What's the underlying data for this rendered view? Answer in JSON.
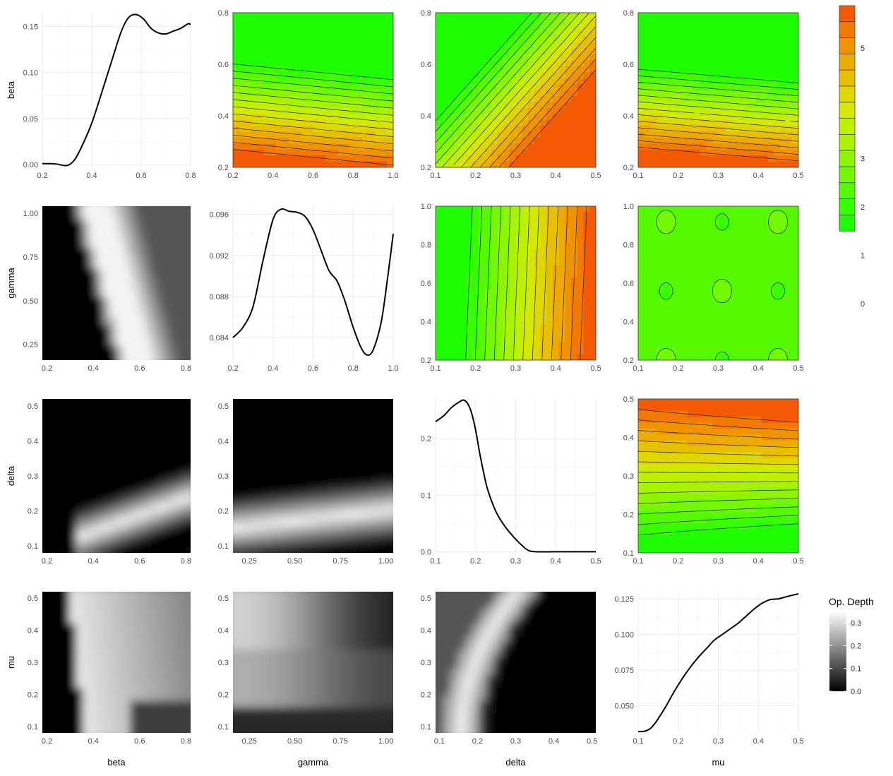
{
  "variables": [
    "beta",
    "gamma",
    "delta",
    "mu"
  ],
  "ranges": {
    "beta": [
      0.2,
      0.8
    ],
    "gamma": [
      0.2,
      1.0
    ],
    "delta": [
      0.1,
      0.5
    ],
    "mu": [
      0.1,
      0.5
    ]
  },
  "axis_titles": {
    "x": [
      "beta",
      "gamma",
      "delta",
      "mu"
    ],
    "y": [
      "beta",
      "gamma",
      "delta",
      "mu"
    ]
  },
  "legends": {
    "contour": {
      "title": "",
      "ticks": [
        "5",
        "3",
        "2",
        "1",
        "0"
      ],
      "colors": [
        "#f35a03",
        "#f27a03",
        "#ef9400",
        "#eeaa00",
        "#e8c000",
        "#e0d600",
        "#d4e800",
        "#c0f000",
        "#a8f400",
        "#8cf600",
        "#72f800",
        "#56fa00",
        "#38fc00",
        "#1efe00"
      ],
      "colorbar": "stepped"
    },
    "depth": {
      "title": "Op. Depth",
      "ticks": [
        "0.3",
        "0.2",
        "0.1",
        "0.0"
      ],
      "range": [
        0.0,
        0.35
      ],
      "colors": [
        "#000000",
        "#ffffff"
      ]
    }
  },
  "chart_data": [
    {
      "type": "line",
      "row": 1,
      "col": 1,
      "variable": "beta",
      "xlabel": "beta",
      "x": [
        0.2,
        0.23,
        0.26,
        0.3,
        0.33,
        0.36,
        0.4,
        0.44,
        0.48,
        0.52,
        0.55,
        0.58,
        0.61,
        0.64,
        0.67,
        0.7,
        0.73,
        0.76,
        0.79,
        0.8
      ],
      "y": [
        0.001,
        0.001,
        0.0005,
        -0.001,
        0.005,
        0.02,
        0.045,
        0.078,
        0.112,
        0.145,
        0.16,
        0.163,
        0.158,
        0.148,
        0.143,
        0.142,
        0.145,
        0.148,
        0.153,
        0.152
      ],
      "xticks": [
        "0.2",
        "0.4",
        "0.6",
        "0.8"
      ],
      "yticks": [
        "0.00",
        "0.05",
        "0.10",
        "0.15"
      ],
      "xlim": [
        0.2,
        0.8
      ],
      "ylim": [
        -0.003,
        0.165
      ]
    },
    {
      "type": "line",
      "row": 2,
      "col": 2,
      "variable": "gamma",
      "xlabel": "gamma",
      "x": [
        0.2,
        0.25,
        0.3,
        0.35,
        0.4,
        0.44,
        0.48,
        0.52,
        0.56,
        0.6,
        0.64,
        0.68,
        0.72,
        0.76,
        0.8,
        0.84,
        0.87,
        0.9,
        0.94,
        0.97,
        1.0
      ],
      "y": [
        0.084,
        0.085,
        0.087,
        0.0915,
        0.0955,
        0.0965,
        0.0963,
        0.0962,
        0.0958,
        0.0945,
        0.0925,
        0.0905,
        0.0895,
        0.0875,
        0.085,
        0.083,
        0.0823,
        0.0828,
        0.0855,
        0.0895,
        0.0941
      ],
      "xticks": [
        "0.2",
        "0.4",
        "0.6",
        "0.8",
        "1.0"
      ],
      "yticks": [
        "0.084",
        "0.088",
        "0.092",
        "0.096"
      ],
      "xlim": [
        0.2,
        1.0
      ],
      "ylim": [
        0.0818,
        0.0968
      ]
    },
    {
      "type": "line",
      "row": 3,
      "col": 3,
      "variable": "delta",
      "xlabel": "delta",
      "x": [
        0.1,
        0.12,
        0.14,
        0.16,
        0.17,
        0.18,
        0.19,
        0.2,
        0.21,
        0.22,
        0.23,
        0.25,
        0.27,
        0.29,
        0.31,
        0.33,
        0.35,
        0.4,
        0.45,
        0.5
      ],
      "y": [
        0.23,
        0.24,
        0.255,
        0.265,
        0.268,
        0.262,
        0.245,
        0.215,
        0.175,
        0.14,
        0.11,
        0.072,
        0.048,
        0.03,
        0.015,
        0.003,
        0.0,
        0.0,
        0.0,
        0.0
      ],
      "xticks": [
        "0.1",
        "0.2",
        "0.3",
        "0.4",
        "0.5"
      ],
      "yticks": [
        "0.0",
        "0.1",
        "0.2"
      ],
      "xlim": [
        0.1,
        0.5
      ],
      "ylim": [
        -0.002,
        0.27
      ]
    },
    {
      "type": "line",
      "row": 4,
      "col": 4,
      "variable": "mu",
      "xlabel": "mu",
      "x": [
        0.1,
        0.11,
        0.12,
        0.13,
        0.14,
        0.15,
        0.17,
        0.19,
        0.21,
        0.23,
        0.25,
        0.27,
        0.29,
        0.31,
        0.33,
        0.35,
        0.37,
        0.39,
        0.41,
        0.43,
        0.45,
        0.47,
        0.5
      ],
      "y": [
        0.032,
        0.032,
        0.0325,
        0.034,
        0.037,
        0.041,
        0.05,
        0.06,
        0.069,
        0.077,
        0.084,
        0.09,
        0.096,
        0.1,
        0.104,
        0.108,
        0.113,
        0.118,
        0.122,
        0.1245,
        0.125,
        0.1265,
        0.1285
      ],
      "xticks": [
        "0.1",
        "0.2",
        "0.3",
        "0.4",
        "0.5"
      ],
      "yticks": [
        "0.050",
        "0.075",
        "0.100",
        "0.125"
      ],
      "xlim": [
        0.1,
        0.5
      ],
      "ylim": [
        0.031,
        0.13
      ]
    },
    {
      "type": "contour",
      "row": 1,
      "col": 2,
      "x_var": "gamma",
      "y_var": "beta",
      "xticks": [
        "0.2",
        "0.4",
        "0.6",
        "0.8",
        "1.0"
      ],
      "yticks": [
        "0.2",
        "0.4",
        "0.6",
        "0.8"
      ],
      "xlim": [
        0.2,
        1.0
      ],
      "ylim": [
        0.2,
        0.8
      ]
    },
    {
      "type": "contour",
      "row": 1,
      "col": 3,
      "x_var": "delta",
      "y_var": "beta",
      "xticks": [
        "0.1",
        "0.2",
        "0.3",
        "0.4",
        "0.5"
      ],
      "yticks": [
        "0.2",
        "0.4",
        "0.6",
        "0.8"
      ],
      "xlim": [
        0.1,
        0.5
      ],
      "ylim": [
        0.2,
        0.8
      ]
    },
    {
      "type": "contour",
      "row": 1,
      "col": 4,
      "x_var": "mu",
      "y_var": "beta",
      "xticks": [
        "0.1",
        "0.2",
        "0.3",
        "0.4",
        "0.5"
      ],
      "yticks": [
        "0.2",
        "0.4",
        "0.6",
        "0.8"
      ],
      "xlim": [
        0.1,
        0.5
      ],
      "ylim": [
        0.2,
        0.8
      ]
    },
    {
      "type": "contour",
      "row": 2,
      "col": 3,
      "x_var": "delta",
      "y_var": "gamma",
      "xticks": [
        "0.1",
        "0.2",
        "0.3",
        "0.4",
        "0.5"
      ],
      "yticks": [
        "0.2",
        "0.4",
        "0.6",
        "0.8",
        "1.0"
      ],
      "xlim": [
        0.1,
        0.5
      ],
      "ylim": [
        0.2,
        1.0
      ]
    },
    {
      "type": "contour",
      "row": 2,
      "col": 4,
      "x_var": "mu",
      "y_var": "gamma",
      "xticks": [
        "0.1",
        "0.2",
        "0.3",
        "0.4",
        "0.5"
      ],
      "yticks": [
        "0.2",
        "0.4",
        "0.6",
        "0.8",
        "1.0"
      ],
      "xlim": [
        0.1,
        0.5
      ],
      "ylim": [
        0.2,
        1.0
      ]
    },
    {
      "type": "contour",
      "row": 3,
      "col": 4,
      "x_var": "mu",
      "y_var": "delta",
      "xticks": [
        "0.1",
        "0.2",
        "0.3",
        "0.4",
        "0.5"
      ],
      "yticks": [
        "0.1",
        "0.2",
        "0.3",
        "0.4",
        "0.5"
      ],
      "xlim": [
        0.1,
        0.5
      ],
      "ylim": [
        0.1,
        0.5
      ]
    },
    {
      "type": "heatmap",
      "row": 2,
      "col": 1,
      "x_var": "beta",
      "y_var": "gamma",
      "xticks": [
        "0.2",
        "0.4",
        "0.6",
        "0.8"
      ],
      "yticks": [
        "0.25",
        "0.50",
        "0.75",
        "1.00"
      ],
      "xlim": [
        0.18,
        0.82
      ],
      "ylim": [
        0.16,
        1.04
      ]
    },
    {
      "type": "heatmap",
      "row": 3,
      "col": 1,
      "x_var": "beta",
      "y_var": "delta",
      "xticks": [
        "0.2",
        "0.4",
        "0.6",
        "0.8"
      ],
      "yticks": [
        "0.1",
        "0.2",
        "0.3",
        "0.4",
        "0.5"
      ],
      "xlim": [
        0.18,
        0.82
      ],
      "ylim": [
        0.08,
        0.52
      ]
    },
    {
      "type": "heatmap",
      "row": 3,
      "col": 2,
      "x_var": "gamma",
      "y_var": "delta",
      "xticks": [
        "0.25",
        "0.50",
        "0.75",
        "1.00"
      ],
      "yticks": [
        "0.1",
        "0.2",
        "0.3",
        "0.4",
        "0.5"
      ],
      "xlim": [
        0.16,
        1.04
      ],
      "ylim": [
        0.08,
        0.52
      ]
    },
    {
      "type": "heatmap",
      "row": 4,
      "col": 1,
      "x_var": "beta",
      "y_var": "mu",
      "xticks": [
        "0.2",
        "0.4",
        "0.6",
        "0.8"
      ],
      "yticks": [
        "0.1",
        "0.2",
        "0.3",
        "0.4",
        "0.5"
      ],
      "xlim": [
        0.18,
        0.82
      ],
      "ylim": [
        0.08,
        0.52
      ]
    },
    {
      "type": "heatmap",
      "row": 4,
      "col": 2,
      "x_var": "gamma",
      "y_var": "mu",
      "xticks": [
        "0.25",
        "0.50",
        "0.75",
        "1.00"
      ],
      "yticks": [
        "0.1",
        "0.2",
        "0.3",
        "0.4",
        "0.5"
      ],
      "xlim": [
        0.16,
        1.04
      ],
      "ylim": [
        0.08,
        0.52
      ]
    },
    {
      "type": "heatmap",
      "row": 4,
      "col": 3,
      "x_var": "delta",
      "y_var": "mu",
      "xticks": [
        "0.1",
        "0.2",
        "0.3",
        "0.4",
        "0.5"
      ],
      "yticks": [
        "0.1",
        "0.2",
        "0.3",
        "0.4",
        "0.5"
      ],
      "xlim": [
        0.09,
        0.51
      ],
      "ylim": [
        0.08,
        0.52
      ]
    }
  ]
}
